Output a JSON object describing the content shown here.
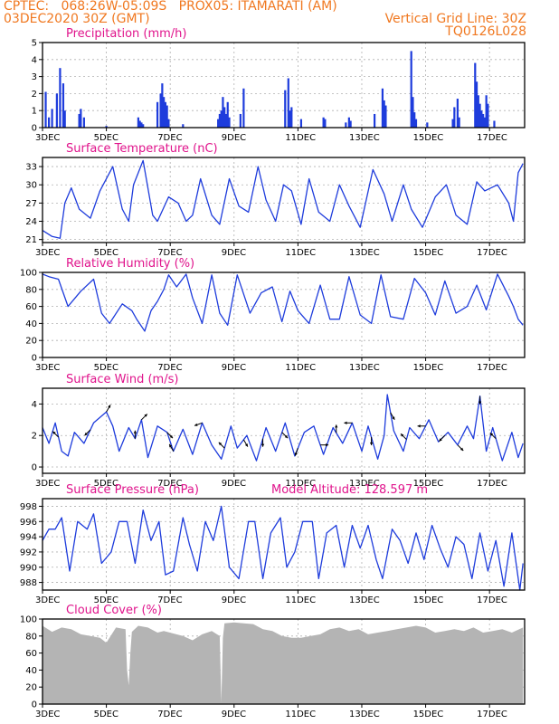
{
  "header": {
    "line1_left": "CPTEC:   068:26W-05:09S   PROX05: ITAMARATI (AM)",
    "line2_left": "03DEC2020 30Z (GMT)",
    "line2_right": "Vertical Grid Line: 30Z",
    "line3_right": "TQ0126L028"
  },
  "colors": {
    "header": "#f07820",
    "title": "#e0148c",
    "series": "#1e3cdc",
    "cloud": "#b4b4b4"
  },
  "chart_data": [
    {
      "type": "bar",
      "title": "Precipitation (mm/h)",
      "ylim": [
        0,
        5
      ],
      "yticks": [
        0,
        1,
        2,
        3,
        4,
        5
      ],
      "xlim": [
        3,
        18.1
      ],
      "xticks": [
        3,
        5,
        7,
        9,
        11,
        13,
        15,
        17
      ],
      "xticklabels": [
        "3DEC",
        "5DEC",
        "7DEC",
        "9DEC",
        "11DEC",
        "13DEC",
        "15DEC",
        "17DEC"
      ],
      "x": [
        3.1,
        3.2,
        3.3,
        3.45,
        3.55,
        3.65,
        3.7,
        4.15,
        4.2,
        4.3,
        5.0,
        6.0,
        6.05,
        6.1,
        6.15,
        6.6,
        6.7,
        6.75,
        6.8,
        6.85,
        6.9,
        6.95,
        7.4,
        8.5,
        8.55,
        8.6,
        8.65,
        8.7,
        8.75,
        8.8,
        8.85,
        9.2,
        9.3,
        10.6,
        10.7,
        10.75,
        10.8,
        11.1,
        11.8,
        11.85,
        12.5,
        12.6,
        12.65,
        13.4,
        13.65,
        13.7,
        13.75,
        14.55,
        14.6,
        14.65,
        14.7,
        15.05,
        15.85,
        15.9,
        16.0,
        16.05,
        16.55,
        16.6,
        16.65,
        16.7,
        16.75,
        16.8,
        16.85,
        16.9,
        16.95,
        17.15
      ],
      "values": [
        2.1,
        0.6,
        1.1,
        2.0,
        3.5,
        2.6,
        1.0,
        0.8,
        1.1,
        0.6,
        0.1,
        0.6,
        0.4,
        0.3,
        0.2,
        1.5,
        2.0,
        2.6,
        1.8,
        1.5,
        1.3,
        0.5,
        0.2,
        0.5,
        0.8,
        1.0,
        1.8,
        1.2,
        0.8,
        1.5,
        0.6,
        0.8,
        2.3,
        2.2,
        2.9,
        1.0,
        1.2,
        0.5,
        0.6,
        0.5,
        0.3,
        0.6,
        0.4,
        0.8,
        2.3,
        1.6,
        1.3,
        4.5,
        1.8,
        0.9,
        0.5,
        0.3,
        0.5,
        1.2,
        1.7,
        0.6,
        3.8,
        2.7,
        1.9,
        1.4,
        1.0,
        0.8,
        0.6,
        1.9,
        1.4,
        0.4
      ]
    },
    {
      "type": "line",
      "title": "Surface Temperature (nC)",
      "ylim": [
        20.5,
        34.5
      ],
      "yticks": [
        21,
        24,
        27,
        30,
        33
      ],
      "xlim": [
        3,
        18.1
      ],
      "xticks": [
        3,
        5,
        7,
        9,
        11,
        13,
        15,
        17
      ],
      "xticklabels": [
        "3DEC",
        "5DEC",
        "7DEC",
        "9DEC",
        "11DEC",
        "13DEC",
        "15DEC",
        "17DEC"
      ],
      "x": [
        3.0,
        3.3,
        3.55,
        3.7,
        3.9,
        4.15,
        4.5,
        4.8,
        5.2,
        5.5,
        5.7,
        5.85,
        6.15,
        6.45,
        6.6,
        6.95,
        7.25,
        7.5,
        7.7,
        7.95,
        8.3,
        8.55,
        8.85,
        9.15,
        9.45,
        9.75,
        10.0,
        10.3,
        10.55,
        10.8,
        11.1,
        11.35,
        11.65,
        12.0,
        12.3,
        12.6,
        12.95,
        13.35,
        13.7,
        13.95,
        14.3,
        14.55,
        14.9,
        15.3,
        15.65,
        15.95,
        16.3,
        16.6,
        16.85,
        17.25,
        17.6,
        17.75,
        17.9,
        18.05
      ],
      "values": [
        22.5,
        21.5,
        21.2,
        27.0,
        29.5,
        26.0,
        24.5,
        29.0,
        33.0,
        26.0,
        24.0,
        30.0,
        34.0,
        25.0,
        24.0,
        28.0,
        27.0,
        24.0,
        25.0,
        31.0,
        25.0,
        23.5,
        31.0,
        26.5,
        25.5,
        33.0,
        27.5,
        24.0,
        30.0,
        29.0,
        23.5,
        31.0,
        25.5,
        24.0,
        30.0,
        26.5,
        23.0,
        32.5,
        28.5,
        24.0,
        30.0,
        26.0,
        23.0,
        28.0,
        30.0,
        25.0,
        23.5,
        30.5,
        29.0,
        30.0,
        27.0,
        24.0,
        32.0,
        33.5
      ]
    },
    {
      "type": "line",
      "title": "Relative Humidity (%)",
      "ylim": [
        0,
        100
      ],
      "yticks": [
        0,
        20,
        40,
        60,
        80,
        100
      ],
      "xlim": [
        3,
        18.1
      ],
      "xticks": [
        3,
        5,
        7,
        9,
        11,
        13,
        15,
        17
      ],
      "xticklabels": [
        "3DEC",
        "5DEC",
        "7DEC",
        "9DEC",
        "11DEC",
        "13DEC",
        "15DEC",
        "17DEC"
      ],
      "x": [
        3.0,
        3.2,
        3.5,
        3.8,
        4.2,
        4.6,
        4.85,
        5.1,
        5.5,
        5.8,
        5.95,
        6.2,
        6.4,
        6.6,
        6.8,
        6.95,
        7.2,
        7.5,
        7.7,
        8.0,
        8.3,
        8.55,
        8.8,
        9.1,
        9.5,
        9.85,
        10.2,
        10.5,
        10.75,
        11.0,
        11.35,
        11.7,
        12.0,
        12.3,
        12.6,
        12.95,
        13.3,
        13.6,
        13.9,
        14.3,
        14.65,
        15.0,
        15.3,
        15.6,
        15.95,
        16.3,
        16.6,
        16.9,
        17.25,
        17.6,
        17.75,
        17.9,
        18.05
      ],
      "values": [
        98,
        95,
        92,
        60,
        78,
        92,
        52,
        40,
        63,
        55,
        45,
        31,
        55,
        66,
        80,
        97,
        83,
        98,
        70,
        40,
        97,
        52,
        38,
        97,
        52,
        76,
        83,
        42,
        78,
        55,
        40,
        85,
        45,
        45,
        95,
        50,
        40,
        97,
        48,
        45,
        93,
        76,
        50,
        90,
        52,
        60,
        85,
        56,
        98,
        72,
        60,
        45,
        38
      ]
    },
    {
      "type": "line",
      "title": "Surface Wind (m/s)",
      "ylim": [
        -0.4,
        5.0
      ],
      "yticks": [
        0,
        2,
        4
      ],
      "xlim": [
        3,
        18.1
      ],
      "xticks": [
        3,
        5,
        7,
        9,
        11,
        13,
        15,
        17
      ],
      "xticklabels": [
        "3DEC",
        "5DEC",
        "7DEC",
        "9DEC",
        "11DEC",
        "13DEC",
        "15DEC",
        "17DEC"
      ],
      "x": [
        3.0,
        3.2,
        3.4,
        3.6,
        3.8,
        4.0,
        4.3,
        4.6,
        5.0,
        5.2,
        5.4,
        5.7,
        5.9,
        6.1,
        6.3,
        6.6,
        6.9,
        7.1,
        7.4,
        7.7,
        8.0,
        8.3,
        8.6,
        8.9,
        9.1,
        9.4,
        9.7,
        10.0,
        10.3,
        10.6,
        10.9,
        11.2,
        11.5,
        11.8,
        12.1,
        12.4,
        12.7,
        13.0,
        13.2,
        13.5,
        13.7,
        13.8,
        14.0,
        14.3,
        14.5,
        14.8,
        15.1,
        15.4,
        15.7,
        16.0,
        16.3,
        16.5,
        16.7,
        16.9,
        17.1,
        17.4,
        17.7,
        17.9,
        18.05
      ],
      "values": [
        2.5,
        1.5,
        2.8,
        1.0,
        0.7,
        2.2,
        1.5,
        2.8,
        3.5,
        2.6,
        1.0,
        2.5,
        1.8,
        3.0,
        0.6,
        2.6,
        2.2,
        1.0,
        2.4,
        0.8,
        2.8,
        1.4,
        0.5,
        2.6,
        1.2,
        2.0,
        0.4,
        2.5,
        1.0,
        2.8,
        0.7,
        2.2,
        2.6,
        0.8,
        2.5,
        1.5,
        2.8,
        1.0,
        2.6,
        0.5,
        2.0,
        4.6,
        2.3,
        1.0,
        2.5,
        1.8,
        3.0,
        1.6,
        2.2,
        1.4,
        2.6,
        1.8,
        4.5,
        1.0,
        2.5,
        0.4,
        2.2,
        0.6,
        1.5
      ],
      "arrows_x": [
        3.5,
        4.5,
        5.0,
        5.9,
        6.1,
        6.9,
        7.1,
        8.0,
        8.7,
        9.3,
        9.9,
        10.5,
        11.0,
        11.7,
        12.2,
        12.7,
        13.3,
        13.9,
        14.4,
        15.0,
        15.6,
        16.0,
        16.7,
        17.2
      ],
      "arrows_deg": [
        135,
        225,
        60,
        90,
        45,
        315,
        120,
        200,
        135,
        300,
        270,
        315,
        250,
        0,
        90,
        180,
        270,
        300,
        135,
        180,
        225,
        315,
        270,
        135
      ]
    },
    {
      "type": "line",
      "title": "Surface Pressure (hPa)",
      "annotation": "Model Altitude: 128.597  m",
      "ylim": [
        987,
        999
      ],
      "yticks": [
        988,
        990,
        992,
        994,
        996,
        998
      ],
      "xlim": [
        3,
        18.1
      ],
      "xticks": [
        3,
        5,
        7,
        9,
        11,
        13,
        15,
        17
      ],
      "xticklabels": [
        "3DEC",
        "5DEC",
        "7DEC",
        "9DEC",
        "11DEC",
        "13DEC",
        "15DEC",
        "17DEC"
      ],
      "x": [
        3.0,
        3.2,
        3.4,
        3.6,
        3.85,
        4.1,
        4.4,
        4.6,
        4.85,
        5.15,
        5.4,
        5.65,
        5.9,
        6.15,
        6.4,
        6.65,
        6.85,
        7.1,
        7.4,
        7.6,
        7.85,
        8.1,
        8.35,
        8.6,
        8.85,
        9.15,
        9.45,
        9.65,
        9.9,
        10.15,
        10.45,
        10.65,
        10.9,
        11.15,
        11.45,
        11.65,
        11.9,
        12.2,
        12.45,
        12.7,
        12.95,
        13.2,
        13.45,
        13.65,
        13.95,
        14.2,
        14.45,
        14.7,
        14.95,
        15.2,
        15.45,
        15.7,
        15.95,
        16.2,
        16.45,
        16.7,
        16.95,
        17.2,
        17.45,
        17.7,
        17.95,
        18.05
      ],
      "values": [
        993.5,
        995.0,
        995.0,
        996.5,
        989.5,
        996.0,
        995.0,
        997.0,
        990.5,
        992.0,
        996.0,
        996.0,
        990.5,
        997.5,
        993.5,
        996.0,
        989.0,
        989.5,
        996.5,
        993.0,
        989.5,
        996.0,
        993.5,
        998.0,
        990.0,
        988.5,
        996.0,
        996.0,
        988.5,
        994.5,
        996.5,
        990.0,
        992.0,
        996.0,
        996.0,
        988.5,
        994.5,
        995.5,
        990.0,
        995.5,
        992.5,
        995.5,
        991.0,
        988.5,
        995.0,
        993.5,
        990.5,
        994.5,
        991.0,
        995.5,
        992.5,
        990.0,
        994.0,
        993.0,
        988.5,
        994.5,
        989.5,
        993.5,
        987.5,
        994.5,
        987.0,
        990.5
      ]
    },
    {
      "type": "area",
      "title": "Cloud Cover (%)",
      "ylim": [
        0,
        100
      ],
      "yticks": [
        0,
        20,
        40,
        60,
        80,
        100
      ],
      "xlim": [
        3,
        18.1
      ],
      "xticks": [
        3,
        5,
        7,
        9,
        11,
        13,
        15,
        17
      ],
      "xticklabels": [
        "3DEC",
        "5DEC",
        "7DEC",
        "9DEC",
        "11DEC",
        "13DEC",
        "15DEC",
        "17DEC"
      ],
      "x": [
        3.0,
        3.3,
        3.6,
        3.9,
        4.2,
        4.5,
        4.8,
        5.0,
        5.3,
        5.6,
        5.65,
        5.7,
        5.75,
        5.8,
        6.0,
        6.3,
        6.6,
        6.8,
        7.1,
        7.4,
        7.7,
        8.0,
        8.3,
        8.55,
        8.6,
        8.65,
        8.7,
        9.0,
        9.3,
        9.6,
        9.9,
        10.2,
        10.5,
        10.8,
        11.1,
        11.4,
        11.7,
        12.0,
        12.3,
        12.6,
        12.9,
        13.2,
        13.5,
        13.8,
        14.1,
        14.4,
        14.7,
        15.0,
        15.3,
        15.6,
        15.9,
        16.2,
        16.5,
        16.8,
        17.1,
        17.4,
        17.7,
        18.05
      ],
      "values": [
        92,
        85,
        90,
        88,
        82,
        80,
        78,
        72,
        90,
        88,
        40,
        22,
        60,
        85,
        92,
        90,
        84,
        86,
        83,
        80,
        75,
        82,
        86,
        80,
        2,
        78,
        95,
        96,
        95,
        94,
        88,
        86,
        80,
        78,
        78,
        80,
        82,
        88,
        90,
        86,
        88,
        82,
        84,
        86,
        88,
        90,
        92,
        90,
        84,
        86,
        88,
        86,
        90,
        84,
        86,
        88,
        84,
        90
      ]
    }
  ]
}
